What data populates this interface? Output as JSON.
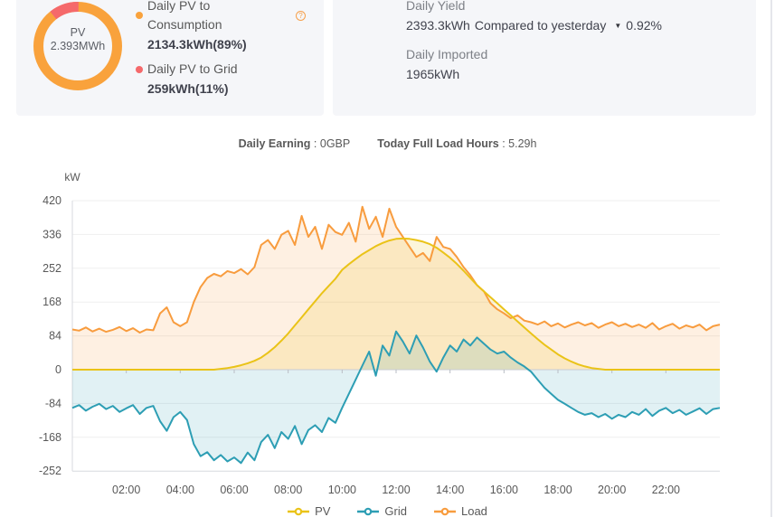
{
  "pv_card": {
    "donut": {
      "center_label": "PV",
      "center_value": "2.393MWh",
      "segments": [
        {
          "name": "Daily PV to Consumption",
          "value": "2134.3kWh(89%)",
          "pct": 89,
          "color": "#F9A23C"
        },
        {
          "name": "Daily PV to Grid",
          "value": "259kWh(11%)",
          "pct": 11,
          "color": "#F5696B"
        }
      ]
    },
    "help_icon": "?"
  },
  "yield_card": {
    "daily_yield_label": "Daily Yield",
    "daily_yield_value": "2393.3kWh",
    "compared_label": "Compared to yesterday",
    "compared_value": "0.92%",
    "triangle_icon": "▼",
    "daily_imported_label": "Daily Imported",
    "daily_imported_value": "1965kWh"
  },
  "stats_row": {
    "earning_label": "Daily Earning",
    "earning_sep": " : ",
    "earning_value": "0GBP",
    "full_load_label": "Today Full Load Hours",
    "full_load_sep": " : ",
    "full_load_value": "5.29h"
  },
  "chart_data": {
    "type": "line",
    "unit": "kW",
    "ylim": [
      -252,
      420
    ],
    "yticks": [
      420,
      336,
      252,
      168,
      84,
      0,
      -84,
      -168,
      -252
    ],
    "xtick_labels": [
      "02:00",
      "04:00",
      "06:00",
      "08:00",
      "10:00",
      "12:00",
      "14:00",
      "16:00",
      "18:00",
      "20:00",
      "22:00"
    ],
    "xtick_hours": [
      2,
      4,
      6,
      8,
      10,
      12,
      14,
      16,
      18,
      20,
      22
    ],
    "x_start_hour": 0,
    "x_end_hour": 24,
    "interval_hours": 0.25,
    "grid": "horizontal",
    "legend_position": "bottom",
    "series": [
      {
        "name": "PV",
        "color": "#EAC318",
        "fill_opacity": 0.16,
        "values": [
          0,
          0,
          0,
          0,
          0,
          0,
          0,
          0,
          0,
          0,
          0,
          0,
          0,
          0,
          0,
          0,
          0,
          0,
          0,
          0,
          0,
          0,
          2,
          4,
          7,
          11,
          16,
          22,
          30,
          42,
          56,
          72,
          90,
          110,
          130,
          150,
          170,
          190,
          208,
          226,
          248,
          262,
          275,
          287,
          297,
          307,
          315,
          321,
          325,
          326,
          325,
          322,
          318,
          312,
          303,
          291,
          278,
          263,
          246,
          228,
          210,
          195,
          180,
          165,
          150,
          135,
          120,
          105,
          90,
          76,
          62,
          50,
          38,
          28,
          20,
          13,
          8,
          4,
          2,
          0,
          0,
          0,
          0,
          0,
          0,
          0,
          0,
          0,
          0,
          0,
          0,
          0,
          0,
          0,
          0,
          0,
          0
        ]
      },
      {
        "name": "Grid",
        "color": "#2D9EB4",
        "fill_opacity": 0.14,
        "values": [
          -95,
          -88,
          -102,
          -92,
          -85,
          -98,
          -90,
          -105,
          -96,
          -88,
          -110,
          -95,
          -90,
          -128,
          -152,
          -118,
          -105,
          -125,
          -185,
          -215,
          -205,
          -225,
          -212,
          -228,
          -218,
          -232,
          -206,
          -225,
          -180,
          -162,
          -195,
          -155,
          -172,
          -140,
          -185,
          -150,
          -138,
          -155,
          -120,
          -132,
          -95,
          -60,
          -25,
          10,
          45,
          -15,
          60,
          35,
          95,
          70,
          40,
          85,
          55,
          20,
          -5,
          30,
          60,
          45,
          75,
          60,
          80,
          65,
          50,
          40,
          45,
          30,
          18,
          8,
          -5,
          -25,
          -45,
          -60,
          -75,
          -85,
          -95,
          -105,
          -112,
          -108,
          -118,
          -110,
          -122,
          -112,
          -118,
          -105,
          -112,
          -98,
          -115,
          -102,
          -95,
          -108,
          -100,
          -112,
          -104,
          -96,
          -110,
          -98,
          -95
        ]
      },
      {
        "name": "Load",
        "color": "#F89C3E",
        "fill_opacity": 0.15,
        "values": [
          100,
          97,
          105,
          95,
          102,
          94,
          99,
          106,
          96,
          103,
          92,
          100,
          98,
          140,
          155,
          118,
          108,
          118,
          168,
          205,
          228,
          238,
          232,
          245,
          240,
          250,
          237,
          255,
          310,
          322,
          300,
          335,
          345,
          310,
          382,
          330,
          355,
          300,
          360,
          342,
          335,
          365,
          318,
          405,
          350,
          380,
          330,
          400,
          355,
          330,
          305,
          280,
          290,
          270,
          330,
          305,
          300,
          280,
          255,
          235,
          210,
          195,
          165,
          150,
          140,
          128,
          135,
          122,
          118,
          112,
          120,
          108,
          115,
          105,
          112,
          118,
          110,
          116,
          104,
          112,
          118,
          108,
          114,
          106,
          112,
          104,
          116,
          100,
          108,
          114,
          102,
          110,
          105,
          112,
          98,
          108,
          112
        ]
      }
    ],
    "legend": [
      "PV",
      "Grid",
      "Load"
    ]
  },
  "colors": {
    "card_bg": "#F5F6F9",
    "axis_text": "#595959",
    "gridline": "#EFEFEF",
    "zero_line": "#C9CCD3",
    "axis_line": "#D7DADF"
  }
}
